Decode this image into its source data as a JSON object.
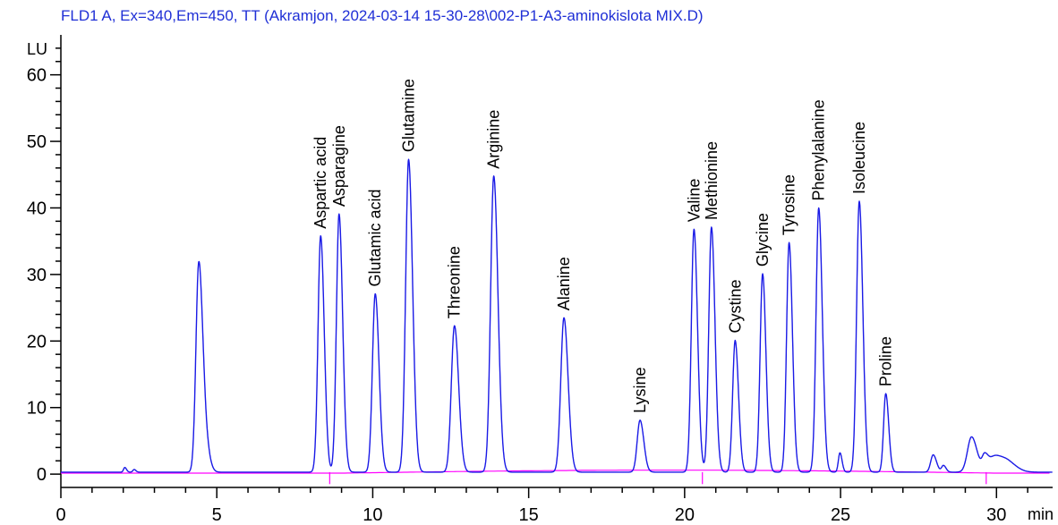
{
  "chart_data": {
    "type": "line",
    "title": "FLD1 A, Ex=340,Em=450, TT (Akramjon, 2024-03-14 15-30-28\\002-P1-A3-aminokislota MIX.D)",
    "ylabel": "LU",
    "xlabel": "min",
    "xlim": [
      0,
      31.8
    ],
    "ylim": [
      -2,
      66
    ],
    "x_ticks": [
      0,
      5,
      10,
      15,
      20,
      25,
      30
    ],
    "y_ticks": [
      0,
      10,
      20,
      30,
      40,
      50,
      60
    ],
    "grid": false,
    "colors": {
      "signal": "#1a1ae6",
      "baseline": "#ff00ff",
      "title": "#1f2fd6"
    },
    "baseline_level": 0.3,
    "peaks": [
      {
        "x": 2.05,
        "height": 0.7,
        "width": 0.04,
        "label": ""
      },
      {
        "x": 2.35,
        "height": 0.4,
        "width": 0.04,
        "label": ""
      },
      {
        "x": 4.42,
        "height": 31.0,
        "width": 0.09,
        "label": ""
      },
      {
        "x": 4.62,
        "height": 4.5,
        "width": 0.1,
        "label": ""
      },
      {
        "x": 8.33,
        "height": 35.5,
        "width": 0.085,
        "label": "Aspartic acid"
      },
      {
        "x": 8.92,
        "height": 38.8,
        "width": 0.085,
        "label": "Asparagine"
      },
      {
        "x": 10.08,
        "height": 26.8,
        "width": 0.09,
        "label": "Glutamic acid"
      },
      {
        "x": 11.15,
        "height": 47.0,
        "width": 0.095,
        "label": "Glutamine"
      },
      {
        "x": 12.62,
        "height": 22.0,
        "width": 0.1,
        "label": "Threonine"
      },
      {
        "x": 13.88,
        "height": 44.5,
        "width": 0.1,
        "label": "Arginine"
      },
      {
        "x": 16.13,
        "height": 23.2,
        "width": 0.1,
        "label": "Alanine"
      },
      {
        "x": 18.57,
        "height": 7.8,
        "width": 0.09,
        "label": "Lysine"
      },
      {
        "x": 20.3,
        "height": 36.5,
        "width": 0.085,
        "label": "Valine"
      },
      {
        "x": 20.86,
        "height": 36.8,
        "width": 0.085,
        "label": "Methionine"
      },
      {
        "x": 21.62,
        "height": 19.8,
        "width": 0.08,
        "label": "Cystine"
      },
      {
        "x": 22.5,
        "height": 29.8,
        "width": 0.08,
        "label": "Glycine"
      },
      {
        "x": 23.35,
        "height": 34.5,
        "width": 0.08,
        "label": "Tyrosine"
      },
      {
        "x": 24.3,
        "height": 39.7,
        "width": 0.085,
        "label": "Phenylalanine"
      },
      {
        "x": 24.98,
        "height": 2.9,
        "width": 0.05,
        "label": ""
      },
      {
        "x": 25.6,
        "height": 40.7,
        "width": 0.085,
        "label": "Isoleucine"
      },
      {
        "x": 26.45,
        "height": 11.8,
        "width": 0.07,
        "label": "Proline"
      },
      {
        "x": 27.97,
        "height": 2.6,
        "width": 0.08,
        "label": ""
      },
      {
        "x": 28.3,
        "height": 1.0,
        "width": 0.06,
        "label": ""
      },
      {
        "x": 29.2,
        "height": 5.3,
        "width": 0.13,
        "label": ""
      },
      {
        "x": 29.62,
        "height": 2.0,
        "width": 0.08,
        "label": ""
      },
      {
        "x": 29.95,
        "height": 2.4,
        "width": 0.2,
        "label": ""
      },
      {
        "x": 30.4,
        "height": 1.2,
        "width": 0.2,
        "label": ""
      }
    ],
    "baseline_markers": [
      8.62,
      20.57,
      29.67
    ]
  }
}
